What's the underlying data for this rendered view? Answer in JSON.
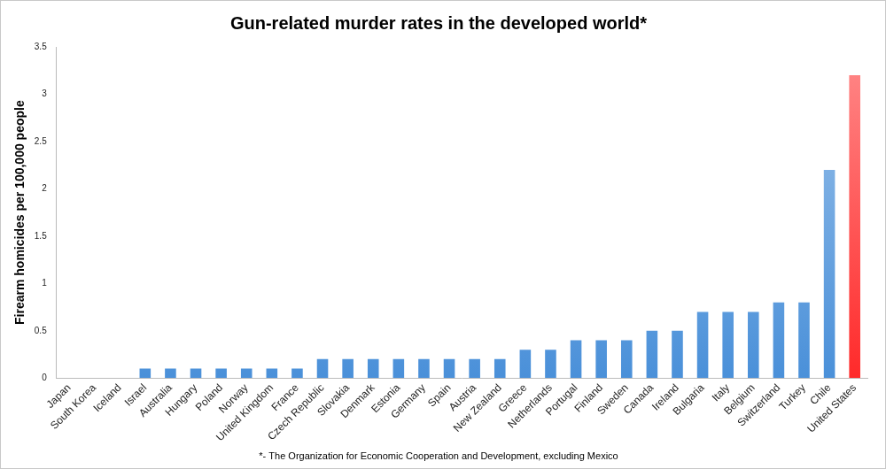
{
  "chart_data": {
    "type": "bar",
    "title": "Gun-related murder rates in the developed world*",
    "y_label": "Firearm homicides per 100,000 people",
    "footnote": "*- The Organization for Economic Cooperation and Development, excluding Mexico",
    "categories": [
      "Japan",
      "South Korea",
      "Iceland",
      "Israel",
      "Australia",
      "Hungary",
      "Poland",
      "Norway",
      "United Kingdom",
      "France",
      "Czech Republic",
      "Slovakia",
      "Denmark",
      "Estonia",
      "Germany",
      "Spain",
      "Austria",
      "New Zealand",
      "Greece",
      "Netherlands",
      "Portugal",
      "Finland",
      "Sweden",
      "Canada",
      "Ireland",
      "Bulgaria",
      "Italy",
      "Belgium",
      "Switzerland",
      "Turkey",
      "Chile",
      "United States"
    ],
    "values": [
      0,
      0,
      0,
      0.1,
      0.1,
      0.1,
      0.1,
      0.1,
      0.1,
      0.1,
      0.2,
      0.2,
      0.2,
      0.2,
      0.2,
      0.2,
      0.2,
      0.2,
      0.3,
      0.3,
      0.4,
      0.4,
      0.4,
      0.5,
      0.5,
      0.7,
      0.7,
      0.7,
      0.8,
      0.8,
      2.2,
      3.2
    ],
    "colors": [
      "#4a90d9",
      "#4a90d9",
      "#4a90d9",
      "#4a90d9",
      "#4a90d9",
      "#4a90d9",
      "#4a90d9",
      "#4a90d9",
      "#4a90d9",
      "#4a90d9",
      "#4a90d9",
      "#4a90d9",
      "#4a90d9",
      "#4a90d9",
      "#4a90d9",
      "#4a90d9",
      "#4a90d9",
      "#4a90d9",
      "#4a90d9",
      "#4a90d9",
      "#4a90d9",
      "#4a90d9",
      "#4a90d9",
      "#4a90d9",
      "#4a90d9",
      "#4a90d9",
      "#4a90d9",
      "#4a90d9",
      "#4a90d9",
      "#4a90d9",
      "#4a90d9",
      "#ff2a2a"
    ],
    "ylim": [
      0,
      3.5
    ],
    "yticks": [
      0,
      0.5,
      1,
      1.5,
      2,
      2.5,
      3,
      3.5
    ],
    "grid": false
  }
}
